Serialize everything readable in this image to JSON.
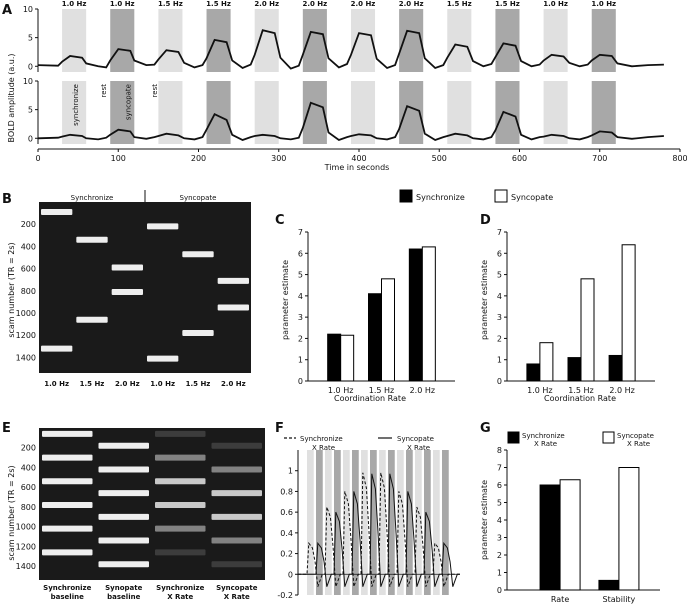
{
  "panel_labels": {
    "A": "A",
    "B": "B",
    "C": "C",
    "D": "D",
    "E": "E",
    "F": "F",
    "G": "G"
  },
  "chart_data": [
    {
      "id": "A",
      "type": "line",
      "ylabel": "BOLD amplitude (a.u.)",
      "xlabel": "Time in seconds",
      "xlim": [
        0,
        800
      ],
      "x_ticks": [
        "0",
        "100",
        "200",
        "300",
        "400",
        "500",
        "600",
        "700",
        "800"
      ],
      "y_ticks": [
        "0",
        "5",
        "10"
      ],
      "ylim": [
        -1,
        10
      ],
      "block_rates": [
        "1.0 Hz",
        "1.0 Hz",
        "1.5 Hz",
        "1.5 Hz",
        "2.0 Hz",
        "2.0 Hz",
        "2.0 Hz",
        "2.0 Hz",
        "1.5 Hz",
        "1.5 Hz",
        "1.0 Hz",
        "1.0 Hz"
      ],
      "block_conditions": [
        "sync",
        "synco",
        "sync",
        "synco",
        "sync",
        "synco",
        "sync",
        "synco",
        "sync",
        "synco",
        "sync",
        "synco"
      ],
      "block_starts": [
        30,
        90,
        150,
        210,
        270,
        330,
        390,
        450,
        510,
        570,
        630,
        690
      ],
      "block_length": 30,
      "annotations": [
        "synchronize",
        "rest",
        "syncopate",
        "rest"
      ],
      "top_trace": [
        [
          0,
          0.2
        ],
        [
          25,
          0.1
        ],
        [
          30,
          0.8
        ],
        [
          40,
          1.8
        ],
        [
          55,
          1.5
        ],
        [
          60,
          0.5
        ],
        [
          75,
          0
        ],
        [
          85,
          -0.2
        ],
        [
          90,
          1.0
        ],
        [
          100,
          3.0
        ],
        [
          115,
          2.7
        ],
        [
          120,
          1.0
        ],
        [
          135,
          0.2
        ],
        [
          145,
          0.3
        ],
        [
          150,
          1.2
        ],
        [
          160,
          2.8
        ],
        [
          175,
          2.5
        ],
        [
          182,
          0.6
        ],
        [
          195,
          -0.2
        ],
        [
          205,
          0.2
        ],
        [
          210,
          1.4
        ],
        [
          220,
          4.6
        ],
        [
          235,
          4.2
        ],
        [
          242,
          1.0
        ],
        [
          255,
          -0.3
        ],
        [
          265,
          0.3
        ],
        [
          270,
          2.0
        ],
        [
          280,
          6.3
        ],
        [
          295,
          5.8
        ],
        [
          302,
          1.5
        ],
        [
          315,
          -0.4
        ],
        [
          325,
          0.1
        ],
        [
          330,
          2.0
        ],
        [
          340,
          6.0
        ],
        [
          355,
          5.6
        ],
        [
          362,
          1.4
        ],
        [
          375,
          -0.2
        ],
        [
          385,
          0.4
        ],
        [
          390,
          2.0
        ],
        [
          400,
          5.8
        ],
        [
          415,
          5.4
        ],
        [
          422,
          1.3
        ],
        [
          435,
          -0.3
        ],
        [
          445,
          0.2
        ],
        [
          450,
          2.2
        ],
        [
          460,
          6.2
        ],
        [
          475,
          5.8
        ],
        [
          482,
          1.4
        ],
        [
          495,
          -0.3
        ],
        [
          505,
          0.2
        ],
        [
          510,
          1.5
        ],
        [
          520,
          3.8
        ],
        [
          535,
          3.4
        ],
        [
          542,
          0.9
        ],
        [
          555,
          0
        ],
        [
          565,
          0.4
        ],
        [
          570,
          1.6
        ],
        [
          580,
          4.0
        ],
        [
          595,
          3.6
        ],
        [
          602,
          0.9
        ],
        [
          615,
          0
        ],
        [
          625,
          0.3
        ],
        [
          630,
          1.0
        ],
        [
          640,
          2.0
        ],
        [
          655,
          1.7
        ],
        [
          662,
          0.6
        ],
        [
          675,
          0
        ],
        [
          685,
          0.3
        ],
        [
          690,
          1.0
        ],
        [
          700,
          2.0
        ],
        [
          715,
          1.8
        ],
        [
          722,
          0.5
        ],
        [
          740,
          0
        ],
        [
          760,
          0.2
        ],
        [
          780,
          0.3
        ]
      ],
      "bottom_trace": [
        [
          0,
          0
        ],
        [
          25,
          0.1
        ],
        [
          30,
          0.3
        ],
        [
          40,
          0.6
        ],
        [
          55,
          0.4
        ],
        [
          60,
          0
        ],
        [
          75,
          -0.2
        ],
        [
          85,
          0.1
        ],
        [
          90,
          0.6
        ],
        [
          100,
          1.5
        ],
        [
          115,
          1.2
        ],
        [
          120,
          0.2
        ],
        [
          135,
          -0.1
        ],
        [
          145,
          0.2
        ],
        [
          150,
          0.4
        ],
        [
          160,
          0.8
        ],
        [
          175,
          0.5
        ],
        [
          182,
          0
        ],
        [
          195,
          -0.2
        ],
        [
          205,
          0.2
        ],
        [
          210,
          1.5
        ],
        [
          220,
          4.2
        ],
        [
          235,
          3.2
        ],
        [
          242,
          0.6
        ],
        [
          255,
          -0.3
        ],
        [
          265,
          0.2
        ],
        [
          270,
          0.4
        ],
        [
          280,
          0.6
        ],
        [
          295,
          0.4
        ],
        [
          302,
          0
        ],
        [
          315,
          -0.2
        ],
        [
          325,
          0.1
        ],
        [
          330,
          1.8
        ],
        [
          340,
          6.2
        ],
        [
          355,
          5.4
        ],
        [
          362,
          1.0
        ],
        [
          375,
          -0.3
        ],
        [
          385,
          0.2
        ],
        [
          390,
          0.4
        ],
        [
          400,
          0.7
        ],
        [
          415,
          0.5
        ],
        [
          422,
          0
        ],
        [
          435,
          -0.2
        ],
        [
          445,
          0.2
        ],
        [
          450,
          1.6
        ],
        [
          460,
          5.6
        ],
        [
          475,
          4.8
        ],
        [
          482,
          0.8
        ],
        [
          495,
          -0.3
        ],
        [
          505,
          0.2
        ],
        [
          510,
          0.4
        ],
        [
          520,
          0.8
        ],
        [
          535,
          0.5
        ],
        [
          542,
          0
        ],
        [
          555,
          -0.2
        ],
        [
          565,
          0.2
        ],
        [
          570,
          1.4
        ],
        [
          580,
          4.6
        ],
        [
          595,
          3.8
        ],
        [
          602,
          0.6
        ],
        [
          615,
          -0.2
        ],
        [
          625,
          0.2
        ],
        [
          630,
          0.3
        ],
        [
          640,
          0.6
        ],
        [
          655,
          0.4
        ],
        [
          662,
          0
        ],
        [
          675,
          -0.2
        ],
        [
          685,
          0.2
        ],
        [
          690,
          0.5
        ],
        [
          700,
          1.2
        ],
        [
          715,
          1.0
        ],
        [
          722,
          0.2
        ],
        [
          740,
          -0.1
        ],
        [
          760,
          0.2
        ],
        [
          780,
          0.4
        ]
      ]
    },
    {
      "id": "B",
      "type": "heatmap",
      "ylabel": "scam number (TR = 2s)",
      "group_labels": [
        "Synchronize",
        "Syncopate"
      ],
      "columns": [
        "1.0 Hz",
        "1.5 Hz",
        "2.0 Hz",
        "1.0 Hz",
        "1.5 Hz",
        "2.0 Hz"
      ],
      "y_ticks": [
        "200",
        "400",
        "600",
        "800",
        "1000",
        "1200",
        "1400"
      ],
      "y_tick_values": [
        200,
        400,
        600,
        800,
        1000,
        1200,
        1400
      ],
      "ylim": [
        0,
        1540
      ],
      "block_rows": [
        [
          1,
          [
            90,
            1320
          ]
        ],
        [
          2,
          [
            340,
            1060
          ]
        ],
        [
          3,
          [
            590,
            810
          ]
        ],
        [
          4,
          [
            220,
            1410
          ]
        ],
        [
          5,
          [
            470,
            1180
          ]
        ],
        [
          6,
          [
            710,
            950
          ]
        ]
      ]
    },
    {
      "id": "C",
      "type": "bar",
      "categories": [
        "1.0 Hz",
        "1.5 Hz",
        "2.0 Hz"
      ],
      "series": [
        {
          "name": "Synchronize",
          "values": [
            2.2,
            4.1,
            6.2
          ]
        },
        {
          "name": "Syncopate",
          "values": [
            2.15,
            4.8,
            6.3
          ]
        }
      ],
      "xlabel": "Coordination Rate",
      "ylabel": "parameter estimate",
      "ylim": [
        0,
        7
      ],
      "y_ticks": [
        "0",
        "1",
        "2",
        "3",
        "4",
        "5",
        "6",
        "7"
      ]
    },
    {
      "id": "D",
      "type": "bar",
      "categories": [
        "1.0 Hz",
        "1.5 Hz",
        "2.0 Hz"
      ],
      "series": [
        {
          "name": "Synchronize",
          "values": [
            0.8,
            1.1,
            1.2
          ]
        },
        {
          "name": "Syncopate",
          "values": [
            1.8,
            4.8,
            6.4
          ]
        }
      ],
      "xlabel": "Coordination Rate",
      "ylabel": "parameter estimate",
      "ylim": [
        0,
        7
      ],
      "y_ticks": [
        "0",
        "1",
        "2",
        "3",
        "4",
        "5",
        "6",
        "7"
      ]
    },
    {
      "id": "E",
      "type": "heatmap",
      "ylabel": "scam number (TR = 2s)",
      "columns": [
        "Synchronize baseline",
        "Synopate baseline",
        "Synchronize X Rate",
        "Syncopate X Rate"
      ],
      "column_lines": [
        [
          "Synchronize",
          "baseline"
        ],
        [
          "Synopate",
          "baseline"
        ],
        [
          "Synchronize",
          "X Rate"
        ],
        [
          "Syncopate",
          "X Rate"
        ]
      ],
      "y_ticks": [
        "200",
        "400",
        "600",
        "800",
        "1000",
        "1200",
        "1400"
      ],
      "y_tick_values": [
        200,
        400,
        600,
        800,
        1000,
        1200,
        1400
      ],
      "ylim": [
        0,
        1540
      ]
    },
    {
      "id": "F",
      "type": "line",
      "legend": [
        {
          "name": "Synchronize X Rate",
          "lines": [
            "Synchronize",
            "X Rate"
          ],
          "style": "dashed"
        },
        {
          "name": "Syncopate X Rate",
          "lines": [
            "Syncopate",
            "X Rate"
          ],
          "style": "solid"
        }
      ],
      "ylim": [
        -0.2,
        1.2
      ],
      "y_ticks": [
        "-0.2",
        "0",
        "0.2",
        "0.4",
        "0.6",
        "0.8",
        "1"
      ],
      "y_tick_values": [
        -0.2,
        0,
        0.2,
        0.4,
        0.6,
        0.8,
        1
      ],
      "block_peaks_sync": [
        0.3,
        0.65,
        0.8,
        0.98,
        0.98,
        0.8,
        0.65,
        0.3
      ],
      "block_peaks_synco": [
        0.3,
        0.6,
        0.8,
        0.97,
        0.97,
        0.8,
        0.6,
        0.3
      ]
    },
    {
      "id": "G",
      "type": "bar",
      "categories": [
        "Rate",
        "Stability"
      ],
      "series": [
        {
          "name": "Synchronize X Rate",
          "lines": [
            "Synchronize",
            "X Rate"
          ],
          "values": [
            6.0,
            0.55
          ]
        },
        {
          "name": "Syncopate X Rate",
          "lines": [
            "Syncopate",
            "X Rate"
          ],
          "values": [
            6.3,
            7.0
          ]
        }
      ],
      "ylabel": "parameter estimate",
      "ylim": [
        0,
        8
      ],
      "y_ticks": [
        "0",
        "1",
        "2",
        "3",
        "4",
        "5",
        "6",
        "7",
        "8"
      ]
    }
  ],
  "legend_main": [
    "Synchronize",
    "Syncopate"
  ],
  "colors": {
    "sync": "#000000",
    "synco": "#ffffff",
    "band_light": "#e0e0e0",
    "band_dark": "#a8a8a8",
    "trace": "#111111"
  }
}
